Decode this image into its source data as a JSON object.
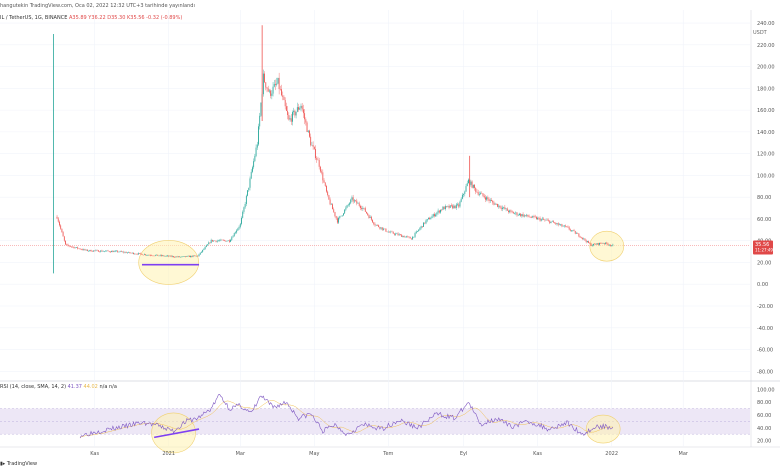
{
  "header": {
    "published_by": "hangutekin TradingView.com, Oca 02, 2022 12:32 UTC+3 tarihinde yayınlandı"
  },
  "symbol_bar": {
    "symbol": "IL / TetherUS, 1G, BINANCE",
    "ohlc": "A35.89 Y36.22 D35.30 K35.56 -0.32 (-0.89%)"
  },
  "quote_currency": "USDT",
  "price_badge": {
    "price": "35.56",
    "countdown": "11:27:49",
    "color": "#e04848"
  },
  "rsi_legend": {
    "label": "RSI (14, close, SMA, 14, 2)",
    "rsi": "41.37",
    "ma": "44.02",
    "extra": "n/a n/a"
  },
  "footer": {
    "brand": "TradingView"
  },
  "colors": {
    "up": "#26a69a",
    "down": "#ef5350",
    "rsi": "#7e57c2",
    "rsi_band": "#ede7f6",
    "highlight": "#fff3b0",
    "highlight_stroke": "#f0d070",
    "support_line": "#7e3ff2"
  },
  "chart_data": [
    {
      "type": "candlestick",
      "title": "",
      "x_tick_labels": [
        "Kas",
        "2021",
        "Mar",
        "May",
        "Tem",
        "Eyl",
        "Kas",
        "2022",
        "Mar"
      ],
      "y_tick_labels": [
        "-80.00",
        "-60.00",
        "-40.00",
        "-20.00",
        "0.00",
        "20.00",
        "40.00",
        "60.00",
        "80.00",
        "100.00",
        "120.00",
        "140.00",
        "160.00",
        "180.00",
        "200.00",
        "220.00",
        "240.00"
      ],
      "ylim": [
        -88,
        252
      ],
      "grid": true,
      "price_series_key_points": [
        {
          "date": "2020-10-01",
          "price": 62
        },
        {
          "date": "2020-10-08",
          "price": 36
        },
        {
          "date": "2020-10-25",
          "price": 31
        },
        {
          "date": "2020-11-20",
          "price": 30
        },
        {
          "date": "2020-12-15",
          "price": 27
        },
        {
          "date": "2021-01-10",
          "price": 25
        },
        {
          "date": "2021-01-25",
          "price": 26
        },
        {
          "date": "2021-02-05",
          "price": 40
        },
        {
          "date": "2021-02-20",
          "price": 40
        },
        {
          "date": "2021-03-01",
          "price": 55
        },
        {
          "date": "2021-03-08",
          "price": 90
        },
        {
          "date": "2021-03-15",
          "price": 130
        },
        {
          "date": "2021-03-20",
          "price": 190
        },
        {
          "date": "2021-03-25",
          "price": 175
        },
        {
          "date": "2021-04-01",
          "price": 185
        },
        {
          "date": "2021-04-10",
          "price": 150
        },
        {
          "date": "2021-04-20",
          "price": 165
        },
        {
          "date": "2021-04-28",
          "price": 130
        },
        {
          "date": "2021-05-05",
          "price": 110
        },
        {
          "date": "2021-05-12",
          "price": 80
        },
        {
          "date": "2021-05-20",
          "price": 58
        },
        {
          "date": "2021-06-01",
          "price": 78
        },
        {
          "date": "2021-06-10",
          "price": 70
        },
        {
          "date": "2021-06-20",
          "price": 55
        },
        {
          "date": "2021-07-01",
          "price": 48
        },
        {
          "date": "2021-07-20",
          "price": 42
        },
        {
          "date": "2021-08-01",
          "price": 58
        },
        {
          "date": "2021-08-15",
          "price": 70
        },
        {
          "date": "2021-08-28",
          "price": 72
        },
        {
          "date": "2021-09-05",
          "price": 95
        },
        {
          "date": "2021-09-12",
          "price": 85
        },
        {
          "date": "2021-09-25",
          "price": 75
        },
        {
          "date": "2021-10-10",
          "price": 66
        },
        {
          "date": "2021-10-25",
          "price": 62
        },
        {
          "date": "2021-11-10",
          "price": 58
        },
        {
          "date": "2021-11-25",
          "price": 52
        },
        {
          "date": "2021-12-05",
          "price": 45
        },
        {
          "date": "2021-12-15",
          "price": 36
        },
        {
          "date": "2021-12-25",
          "price": 38
        },
        {
          "date": "2022-01-02",
          "price": 35.56
        }
      ],
      "spikes": [
        {
          "date": "2020-09-28",
          "high": 230,
          "low": 10
        },
        {
          "date": "2021-03-19",
          "high": 238,
          "low": 150
        },
        {
          "date": "2021-09-06",
          "high": 118,
          "low": 80
        }
      ],
      "support_line": {
        "from": {
          "date": "2020-12-10",
          "price": 18
        },
        "to": {
          "date": "2021-01-26",
          "price": 18
        }
      },
      "highlights": [
        {
          "center": {
            "date": "2021-01-01",
            "price": 20
          }
        },
        {
          "center": {
            "date": "2021-12-28",
            "price": 35
          }
        }
      ]
    },
    {
      "type": "line",
      "title": "",
      "x_tick_labels": [
        "Kas",
        "2021",
        "Mar",
        "May",
        "Tem",
        "Eyl",
        "Kas",
        "2022",
        "Mar"
      ],
      "y_tick_labels": [
        "20.00",
        "40.00",
        "60.00",
        "80.00",
        "100.00"
      ],
      "ylim": [
        10,
        110
      ],
      "band": [
        30,
        70
      ],
      "midline": 50,
      "rsi_key_points": [
        {
          "date": "2020-10-20",
          "value": 28
        },
        {
          "date": "2020-11-05",
          "value": 35
        },
        {
          "date": "2020-11-25",
          "value": 42
        },
        {
          "date": "2020-12-10",
          "value": 48
        },
        {
          "date": "2020-12-20",
          "value": 45
        },
        {
          "date": "2021-01-05",
          "value": 35
        },
        {
          "date": "2021-01-15",
          "value": 50
        },
        {
          "date": "2021-01-25",
          "value": 55
        },
        {
          "date": "2021-02-05",
          "value": 70
        },
        {
          "date": "2021-02-12",
          "value": 92
        },
        {
          "date": "2021-02-20",
          "value": 70
        },
        {
          "date": "2021-03-01",
          "value": 75
        },
        {
          "date": "2021-03-10",
          "value": 62
        },
        {
          "date": "2021-03-18",
          "value": 90
        },
        {
          "date": "2021-03-28",
          "value": 72
        },
        {
          "date": "2021-04-08",
          "value": 80
        },
        {
          "date": "2021-04-18",
          "value": 55
        },
        {
          "date": "2021-04-28",
          "value": 62
        },
        {
          "date": "2021-05-08",
          "value": 35
        },
        {
          "date": "2021-05-18",
          "value": 45
        },
        {
          "date": "2021-05-28",
          "value": 30
        },
        {
          "date": "2021-06-10",
          "value": 45
        },
        {
          "date": "2021-06-25",
          "value": 38
        },
        {
          "date": "2021-07-10",
          "value": 52
        },
        {
          "date": "2021-07-25",
          "value": 40
        },
        {
          "date": "2021-08-10",
          "value": 62
        },
        {
          "date": "2021-08-25",
          "value": 55
        },
        {
          "date": "2021-09-05",
          "value": 80
        },
        {
          "date": "2021-09-15",
          "value": 45
        },
        {
          "date": "2021-09-28",
          "value": 55
        },
        {
          "date": "2021-10-10",
          "value": 42
        },
        {
          "date": "2021-10-25",
          "value": 50
        },
        {
          "date": "2021-11-10",
          "value": 38
        },
        {
          "date": "2021-11-25",
          "value": 48
        },
        {
          "date": "2021-12-08",
          "value": 30
        },
        {
          "date": "2021-12-20",
          "value": 42
        },
        {
          "date": "2022-01-02",
          "value": 41.37
        }
      ],
      "support_line": {
        "from": {
          "date": "2020-12-20",
          "value": 25
        },
        "to": {
          "date": "2021-01-26",
          "value": 38
        }
      },
      "highlights": [
        {
          "center": {
            "date": "2021-01-05",
            "value": 32
          }
        },
        {
          "center": {
            "date": "2021-12-25",
            "value": 38
          }
        }
      ]
    }
  ]
}
